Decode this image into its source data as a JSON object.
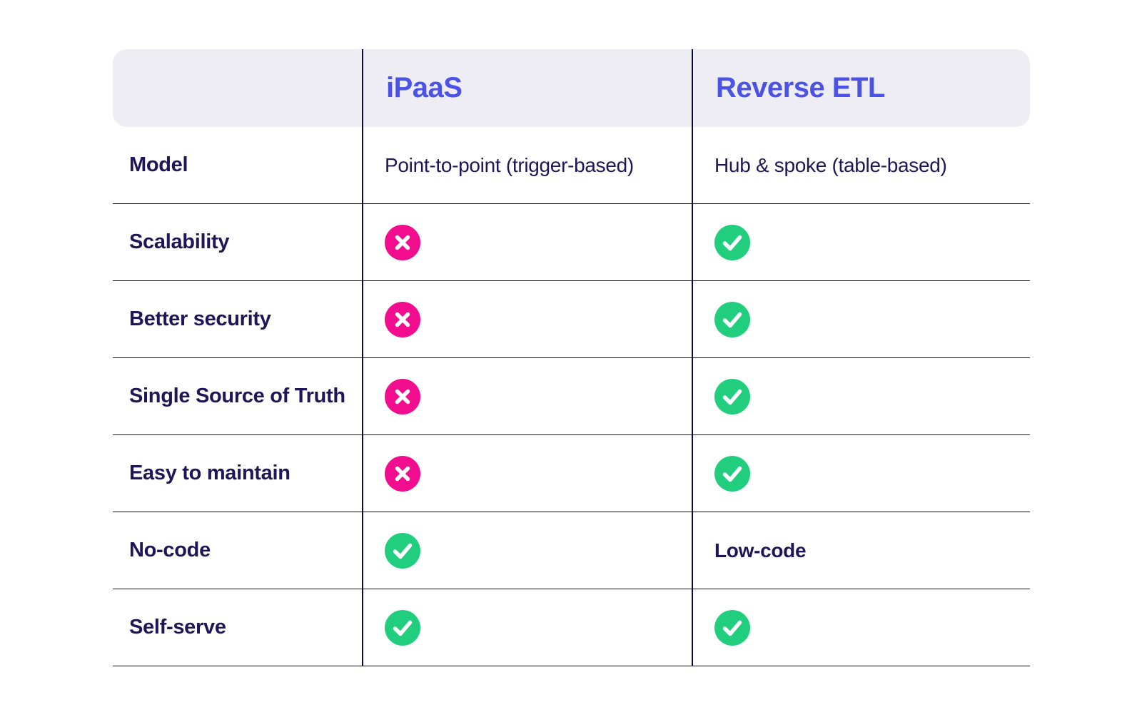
{
  "table": {
    "header": {
      "col1": "",
      "col2": "iPaaS",
      "col3": "Reverse ETL"
    },
    "rows": [
      {
        "label": "Model",
        "cells": [
          {
            "type": "text",
            "value": "Point-to-point (trigger-based)",
            "bold": false
          },
          {
            "type": "text",
            "value": "Hub & spoke (table-based)",
            "bold": false
          }
        ]
      },
      {
        "label": "Scalability",
        "cells": [
          {
            "type": "cross"
          },
          {
            "type": "check"
          }
        ]
      },
      {
        "label": "Better security",
        "cells": [
          {
            "type": "cross"
          },
          {
            "type": "check"
          }
        ]
      },
      {
        "label": "Single Source of Truth",
        "cells": [
          {
            "type": "cross"
          },
          {
            "type": "check"
          }
        ]
      },
      {
        "label": "Easy to maintain",
        "cells": [
          {
            "type": "cross"
          },
          {
            "type": "check"
          }
        ]
      },
      {
        "label": "No-code",
        "cells": [
          {
            "type": "check"
          },
          {
            "type": "text",
            "value": "Low-code",
            "bold": true
          }
        ]
      },
      {
        "label": "Self-serve",
        "cells": [
          {
            "type": "check"
          },
          {
            "type": "check"
          }
        ]
      }
    ],
    "colors": {
      "page_bg": "#FFFFFF",
      "header_bg": "#EEEDF4",
      "header_text": "#4A52E8",
      "body_text": "#1E1656",
      "line": "#0B0A47",
      "cross_bg": "#F20D8E",
      "check_bg": "#20CE7E",
      "icon_glyph": "#FFFFFF"
    }
  }
}
